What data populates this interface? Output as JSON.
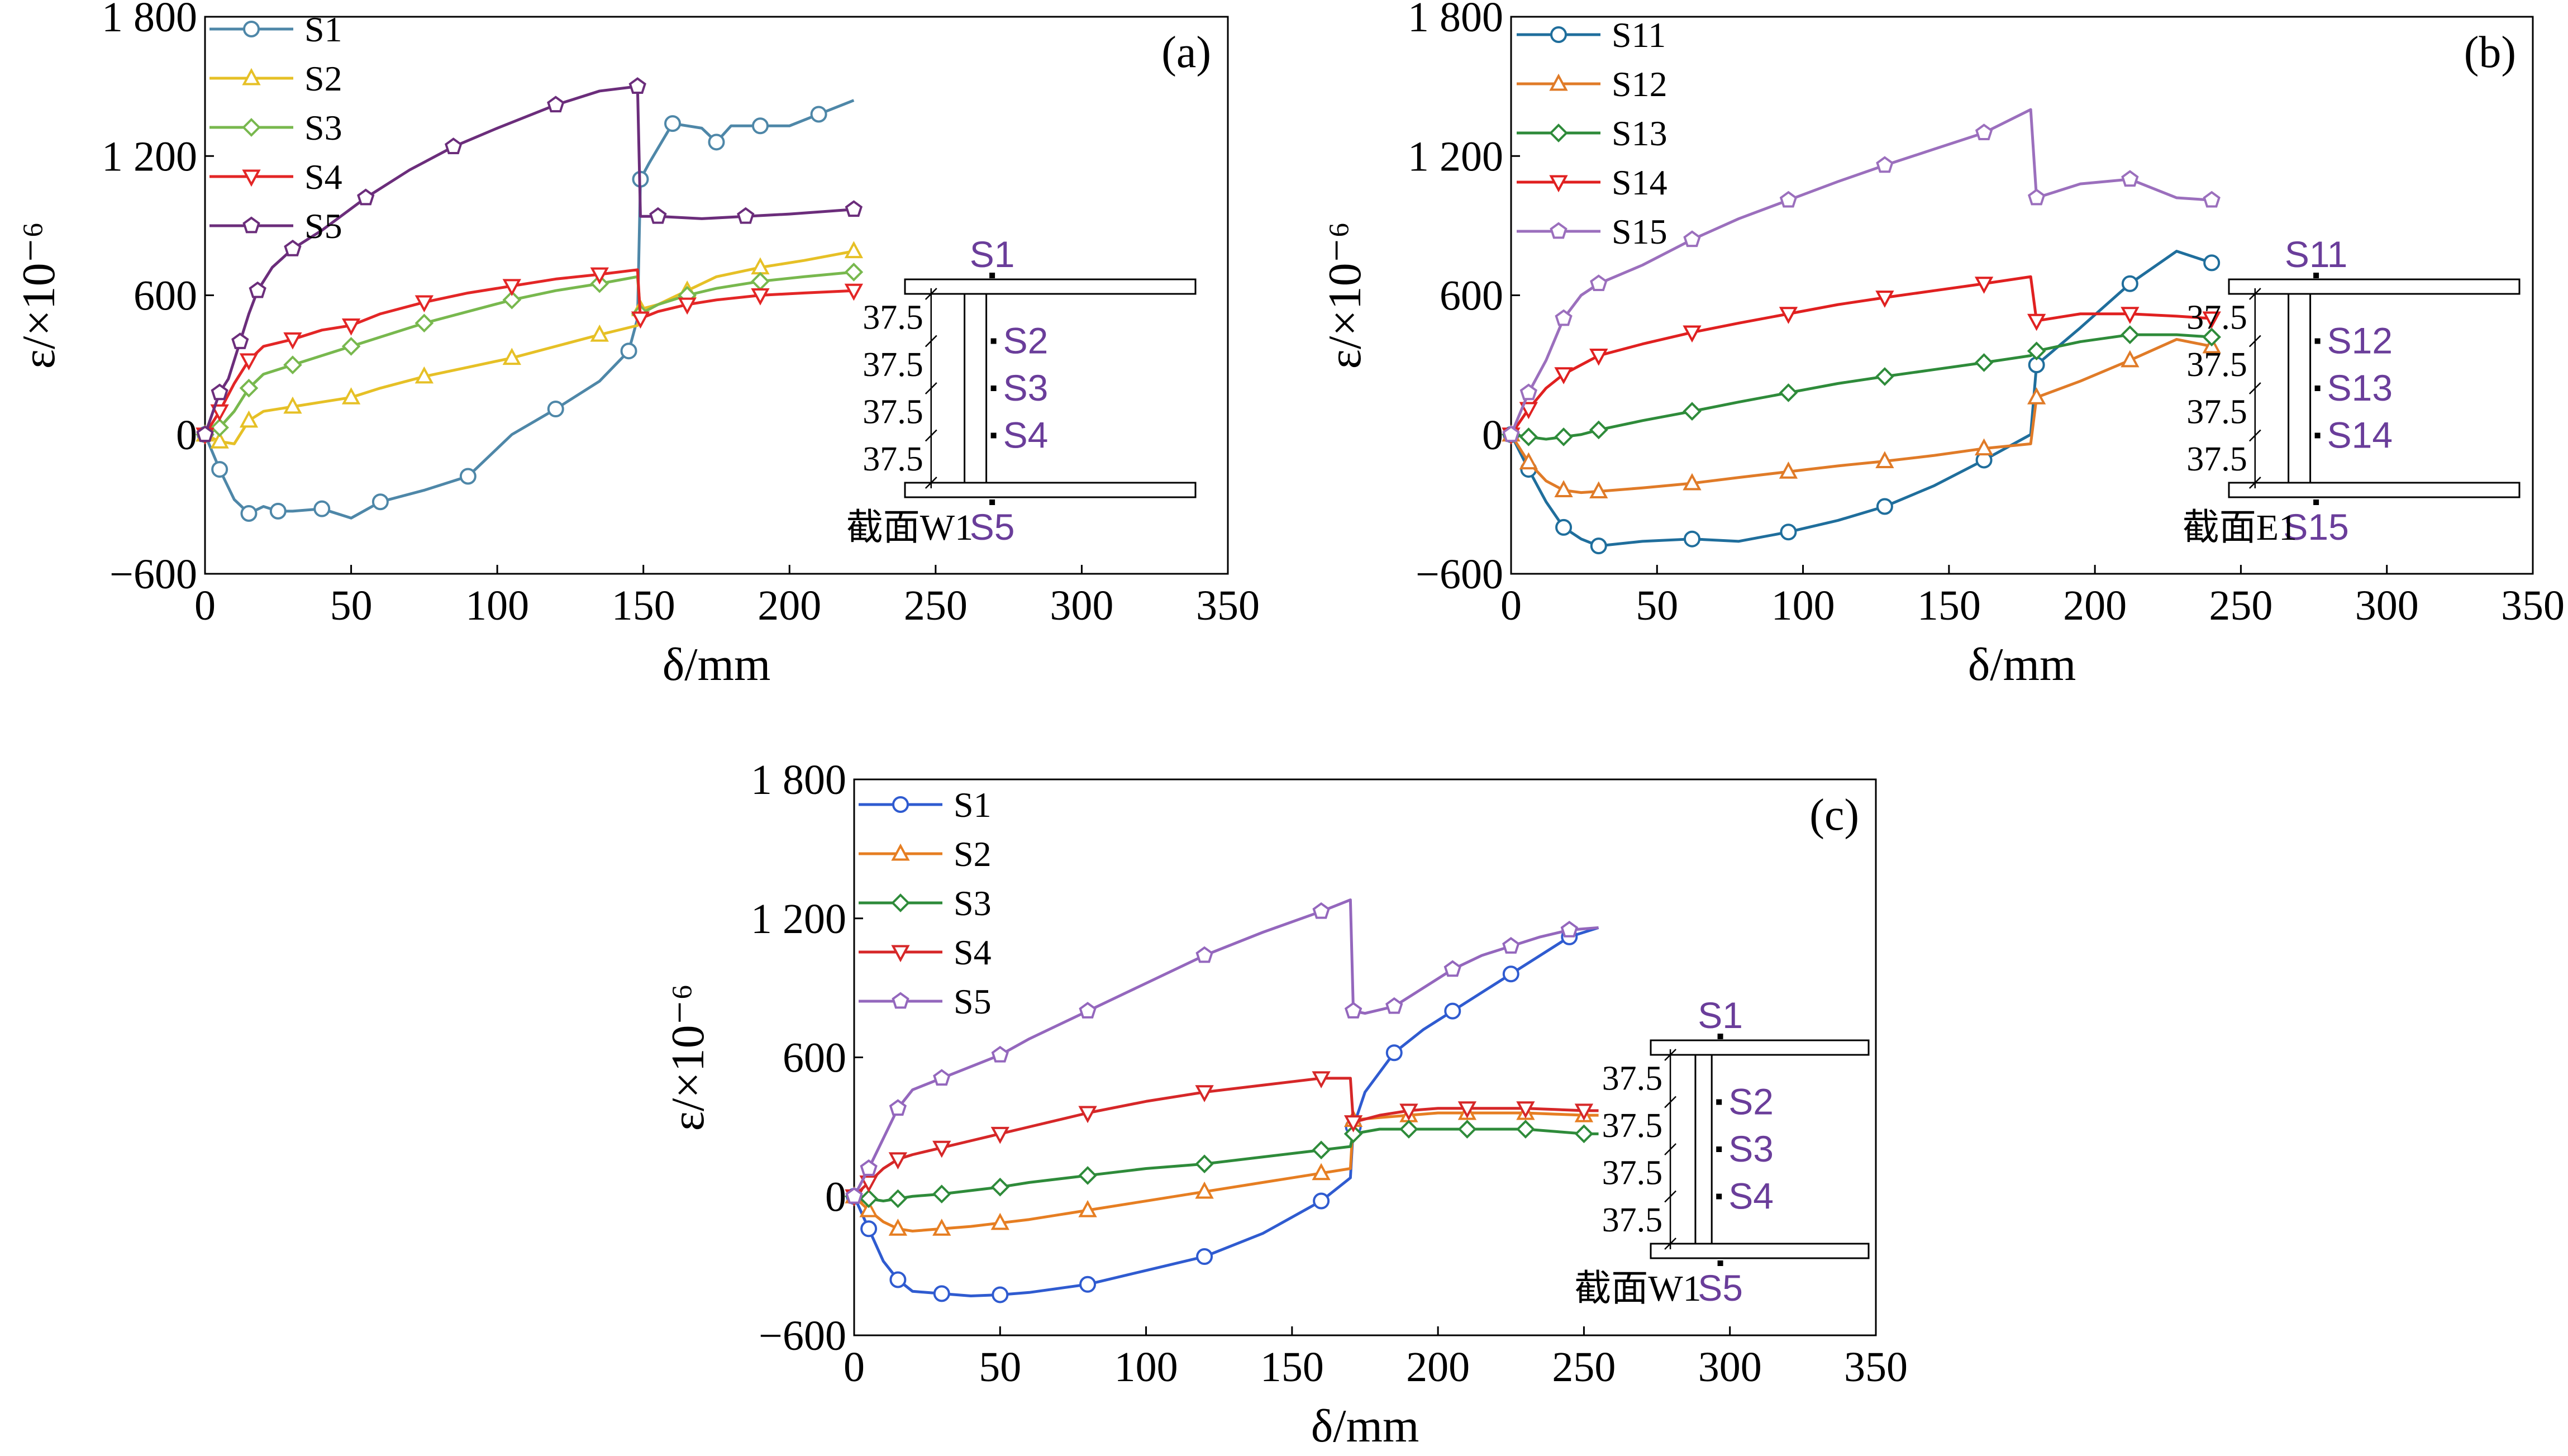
{
  "figure": {
    "description_labels": [
      "(a)",
      "(b)",
      "(c)"
    ]
  },
  "chart_data": [
    {
      "type": "line",
      "panel_label": "(a)",
      "xlabel": "δ/mm",
      "ylabel": "ε/×10⁻⁶",
      "xlim": [
        0,
        350
      ],
      "ylim": [
        -600,
        1800
      ],
      "xticks": [
        "0",
        "50",
        "100",
        "150",
        "200",
        "250",
        "300",
        "350"
      ],
      "yticks": [
        "−600",
        "0",
        "600",
        "1 200",
        "1 800"
      ],
      "section": {
        "name": "截面W1",
        "top_label": "S1",
        "side_labels": [
          "S2",
          "S3",
          "S4"
        ],
        "bottom_label": "S5",
        "dims": [
          "37.5",
          "37.5",
          "37.5",
          "37.5"
        ]
      },
      "series": [
        {
          "name": "S1",
          "color": "#4e87a8",
          "marker": "circle",
          "x": [
            0,
            5,
            10,
            15,
            20,
            25,
            30,
            40,
            50,
            60,
            75,
            90,
            105,
            120,
            135,
            145,
            148,
            149,
            152,
            160,
            170,
            175,
            180,
            190,
            200,
            210,
            222
          ],
          "y": [
            0,
            -150,
            -280,
            -340,
            -310,
            -330,
            -330,
            -320,
            -360,
            -290,
            -240,
            -180,
            0,
            110,
            230,
            360,
            500,
            1100,
            1170,
            1340,
            1320,
            1260,
            1330,
            1330,
            1330,
            1380,
            1440
          ]
        },
        {
          "name": "S2",
          "color": "#e6c026",
          "marker": "triangle",
          "x": [
            0,
            5,
            10,
            15,
            20,
            30,
            40,
            50,
            60,
            75,
            90,
            105,
            120,
            135,
            148,
            149,
            155,
            165,
            175,
            190,
            205,
            222
          ],
          "y": [
            0,
            -30,
            -40,
            60,
            100,
            120,
            140,
            160,
            200,
            250,
            290,
            330,
            380,
            430,
            470,
            540,
            560,
            620,
            680,
            720,
            750,
            790
          ]
        },
        {
          "name": "S3",
          "color": "#78b84e",
          "marker": "diamond",
          "x": [
            0,
            5,
            10,
            15,
            20,
            30,
            40,
            50,
            60,
            75,
            90,
            105,
            120,
            135,
            148,
            149,
            155,
            165,
            175,
            190,
            205,
            222
          ],
          "y": [
            0,
            30,
            100,
            200,
            260,
            300,
            340,
            380,
            420,
            480,
            530,
            580,
            620,
            650,
            680,
            520,
            560,
            600,
            630,
            660,
            680,
            700
          ]
        },
        {
          "name": "S4",
          "color": "#e32626",
          "marker": "triangle-down",
          "x": [
            0,
            5,
            10,
            15,
            20,
            30,
            40,
            50,
            60,
            75,
            90,
            105,
            120,
            135,
            148,
            149,
            155,
            165,
            175,
            190,
            205,
            222
          ],
          "y": [
            0,
            100,
            220,
            320,
            380,
            410,
            450,
            470,
            520,
            570,
            610,
            640,
            670,
            690,
            710,
            500,
            530,
            560,
            580,
            600,
            610,
            620
          ]
        },
        {
          "name": "S5",
          "color": "#6b2d7b",
          "marker": "pentagon",
          "x": [
            0,
            5,
            8,
            12,
            15,
            18,
            23,
            30,
            40,
            55,
            70,
            85,
            100,
            120,
            135,
            148,
            149,
            155,
            170,
            185,
            200,
            222
          ],
          "y": [
            0,
            180,
            240,
            400,
            520,
            620,
            720,
            800,
            880,
            1020,
            1140,
            1240,
            1320,
            1420,
            1480,
            1500,
            940,
            940,
            930,
            940,
            950,
            970
          ]
        }
      ]
    },
    {
      "type": "line",
      "panel_label": "(b)",
      "xlabel": "δ/mm",
      "ylabel": "ε/×10⁻⁶",
      "xlim": [
        0,
        350
      ],
      "ylim": [
        -600,
        1800
      ],
      "xticks": [
        "0",
        "50",
        "100",
        "150",
        "200",
        "250",
        "300",
        "350"
      ],
      "yticks": [
        "−600",
        "0",
        "600",
        "1 200",
        "1 800"
      ],
      "section": {
        "name": "截面E1",
        "top_label": "S11",
        "side_labels": [
          "S12",
          "S13",
          "S14"
        ],
        "bottom_label": "S15",
        "dims": [
          "37.5",
          "37.5",
          "37.5",
          "37.5"
        ]
      },
      "series": [
        {
          "name": "S11",
          "color": "#1f6e9c",
          "marker": "circle",
          "x": [
            0,
            6,
            12,
            18,
            24,
            30,
            45,
            62,
            78,
            95,
            112,
            128,
            145,
            162,
            178,
            180,
            195,
            212,
            228,
            240
          ],
          "y": [
            0,
            -150,
            -290,
            -400,
            -450,
            -480,
            -460,
            -450,
            -460,
            -420,
            -370,
            -310,
            -220,
            -110,
            0,
            300,
            460,
            650,
            790,
            740
          ]
        },
        {
          "name": "S12",
          "color": "#e07b28",
          "marker": "triangle",
          "x": [
            0,
            6,
            12,
            18,
            24,
            30,
            45,
            62,
            78,
            95,
            112,
            128,
            145,
            162,
            178,
            180,
            195,
            212,
            228,
            240
          ],
          "y": [
            0,
            -120,
            -200,
            -240,
            -250,
            -245,
            -230,
            -210,
            -185,
            -160,
            -135,
            -115,
            -90,
            -60,
            -40,
            160,
            230,
            320,
            410,
            380
          ]
        },
        {
          "name": "S13",
          "color": "#2e8b3a",
          "marker": "diamond",
          "x": [
            0,
            6,
            12,
            18,
            24,
            30,
            45,
            62,
            78,
            95,
            112,
            128,
            145,
            162,
            178,
            180,
            195,
            212,
            228,
            240
          ],
          "y": [
            0,
            -10,
            -20,
            -10,
            0,
            20,
            60,
            100,
            140,
            180,
            220,
            250,
            280,
            310,
            340,
            360,
            400,
            430,
            430,
            420
          ]
        },
        {
          "name": "S14",
          "color": "#e02020",
          "marker": "triangle-down",
          "x": [
            0,
            6,
            12,
            18,
            24,
            30,
            45,
            62,
            78,
            95,
            112,
            128,
            145,
            162,
            178,
            180,
            195,
            212,
            228,
            240
          ],
          "y": [
            0,
            110,
            200,
            260,
            300,
            340,
            390,
            440,
            480,
            520,
            560,
            590,
            620,
            650,
            680,
            490,
            520,
            520,
            510,
            500
          ]
        },
        {
          "name": "S15",
          "color": "#9b6fbd",
          "marker": "pentagon",
          "x": [
            0,
            6,
            12,
            18,
            24,
            30,
            45,
            62,
            78,
            95,
            112,
            128,
            145,
            162,
            178,
            180,
            195,
            212,
            228,
            240
          ],
          "y": [
            0,
            180,
            320,
            500,
            600,
            650,
            730,
            840,
            930,
            1010,
            1090,
            1160,
            1230,
            1300,
            1400,
            1020,
            1080,
            1100,
            1020,
            1010
          ]
        }
      ]
    },
    {
      "type": "line",
      "panel_label": "(c)",
      "xlabel": "δ/mm",
      "ylabel": "ε/×10⁻⁶",
      "xlim": [
        0,
        350
      ],
      "ylim": [
        -600,
        1800
      ],
      "xticks": [
        "0",
        "50",
        "100",
        "150",
        "200",
        "250",
        "300",
        "350"
      ],
      "yticks": [
        "−600",
        "0",
        "600",
        "1 200",
        "1 800"
      ],
      "section": {
        "name": "截面W1",
        "top_label": "S1",
        "side_labels": [
          "S2",
          "S3",
          "S4"
        ],
        "bottom_label": "S5",
        "dims": [
          "37.5",
          "37.5",
          "37.5",
          "37.5"
        ]
      },
      "series": [
        {
          "name": "S1",
          "color": "#2f5bd0",
          "marker": "circle",
          "x": [
            0,
            5,
            10,
            15,
            20,
            30,
            40,
            50,
            60,
            80,
            100,
            120,
            140,
            160,
            170,
            171,
            175,
            185,
            195,
            205,
            215,
            225,
            235,
            245,
            255
          ],
          "y": [
            0,
            -140,
            -280,
            -360,
            -410,
            -420,
            -430,
            -425,
            -415,
            -380,
            -320,
            -260,
            -160,
            -20,
            80,
            300,
            450,
            620,
            720,
            800,
            880,
            960,
            1040,
            1120,
            1160
          ]
        },
        {
          "name": "S2",
          "color": "#e67e22",
          "marker": "triangle",
          "x": [
            0,
            5,
            10,
            15,
            20,
            30,
            40,
            50,
            60,
            80,
            100,
            120,
            140,
            160,
            170,
            171,
            180,
            190,
            200,
            210,
            220,
            230,
            240,
            250,
            255
          ],
          "y": [
            0,
            -60,
            -110,
            -140,
            -150,
            -140,
            -130,
            -115,
            -100,
            -60,
            -20,
            20,
            60,
            100,
            120,
            330,
            340,
            350,
            360,
            360,
            360,
            360,
            355,
            350,
            350
          ]
        },
        {
          "name": "S3",
          "color": "#2e8b3a",
          "marker": "diamond",
          "x": [
            0,
            5,
            10,
            15,
            20,
            30,
            40,
            50,
            60,
            80,
            100,
            120,
            140,
            160,
            170,
            171,
            180,
            190,
            200,
            210,
            220,
            230,
            240,
            250,
            255
          ],
          "y": [
            0,
            -10,
            -20,
            -10,
            0,
            10,
            25,
            40,
            60,
            90,
            120,
            140,
            170,
            200,
            215,
            270,
            290,
            290,
            290,
            290,
            290,
            290,
            280,
            270,
            270
          ]
        },
        {
          "name": "S4",
          "color": "#d62728",
          "marker": "triangle-down",
          "x": [
            0,
            5,
            10,
            15,
            20,
            30,
            40,
            50,
            60,
            80,
            100,
            120,
            140,
            160,
            170,
            171,
            180,
            190,
            200,
            210,
            220,
            230,
            240,
            250,
            255
          ],
          "y": [
            0,
            60,
            120,
            160,
            180,
            210,
            240,
            270,
            300,
            360,
            410,
            450,
            480,
            510,
            510,
            320,
            350,
            370,
            380,
            380,
            380,
            380,
            375,
            370,
            370
          ]
        },
        {
          "name": "S5",
          "color": "#9467bd",
          "marker": "pentagon",
          "x": [
            0,
            5,
            10,
            15,
            20,
            30,
            40,
            50,
            60,
            80,
            100,
            120,
            140,
            160,
            170,
            171,
            175,
            185,
            195,
            205,
            215,
            225,
            235,
            245,
            255
          ],
          "y": [
            0,
            120,
            250,
            380,
            460,
            510,
            560,
            610,
            680,
            800,
            920,
            1040,
            1140,
            1230,
            1280,
            800,
            790,
            820,
            900,
            980,
            1040,
            1080,
            1120,
            1150,
            1160
          ]
        }
      ]
    }
  ]
}
